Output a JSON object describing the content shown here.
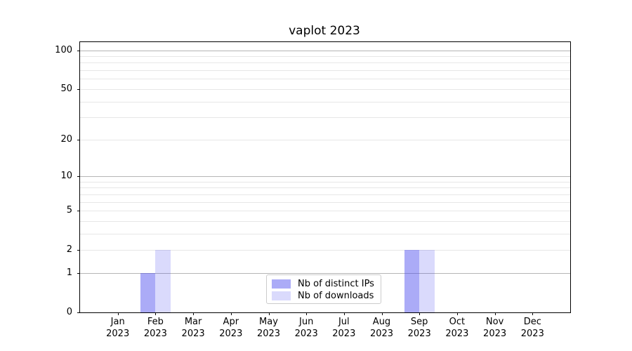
{
  "chart_data": {
    "type": "bar",
    "title": "vaplot 2023",
    "categories": [
      "Jan\n2023",
      "Feb\n2023",
      "Mar\n2023",
      "Apr\n2023",
      "May\n2023",
      "Jun\n2023",
      "Jul\n2023",
      "Aug\n2023",
      "Sep\n2023",
      "Oct\n2023",
      "Nov\n2023",
      "Dec\n2023"
    ],
    "series": [
      {
        "name": "Nb of distinct IPs",
        "color": "#4444ee",
        "alpha": 0.45,
        "values": [
          0,
          1,
          0,
          0,
          0,
          0,
          0,
          0,
          2,
          0,
          0,
          0
        ]
      },
      {
        "name": "Nb of downloads",
        "color": "#4444ee",
        "alpha": 0.2,
        "values": [
          0,
          2,
          0,
          0,
          0,
          0,
          0,
          0,
          2,
          0,
          0,
          0
        ]
      }
    ],
    "yticks": [
      0,
      1,
      2,
      5,
      10,
      20,
      50,
      100
    ],
    "y_scale": "log(1+y)",
    "ylim": [
      0,
      115
    ],
    "xlabel": "",
    "ylabel": "",
    "grid": true,
    "legend_position": "lower center"
  }
}
